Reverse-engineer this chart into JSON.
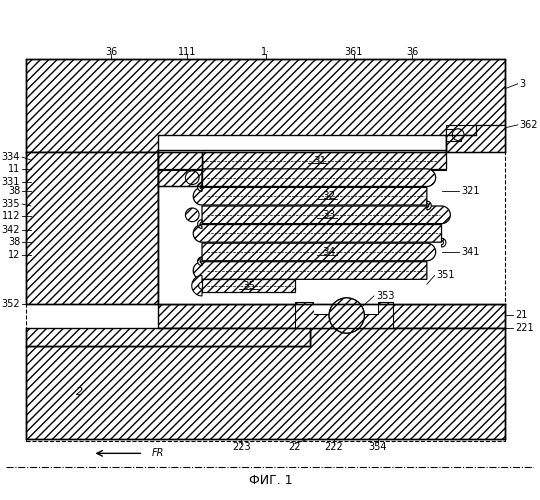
{
  "title": "ФИГ. 1",
  "bg_color": "#ffffff",
  "fig_w": 5.4,
  "fig_h": 5.0,
  "dpi": 100
}
